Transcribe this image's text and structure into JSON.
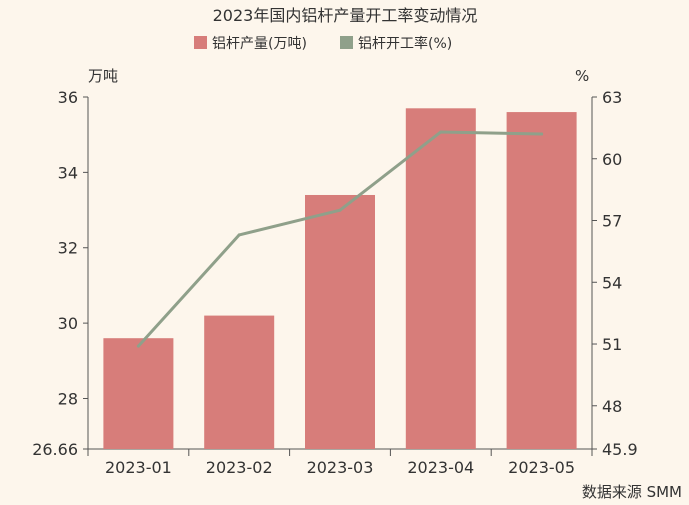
{
  "chart_data": {
    "type": "bar",
    "title": "2023年国内铝杆产量开工率变动情况",
    "categories": [
      "2023-01",
      "2023-02",
      "2023-03",
      "2023-04",
      "2023-05"
    ],
    "series": [
      {
        "name": "铝杆产量(万吨)",
        "type": "bar",
        "axis": "left",
        "color": "#d77d7a",
        "values": [
          29.6,
          30.2,
          33.4,
          35.7,
          35.6
        ]
      },
      {
        "name": "铝杆开工率(%)",
        "type": "line",
        "axis": "right",
        "color": "#8fa08a",
        "values": [
          50.9,
          56.3,
          57.5,
          61.3,
          61.2
        ]
      }
    ],
    "y_left": {
      "label": "万吨",
      "min": 26.66,
      "max": 36,
      "ticks": [
        26.66,
        28,
        30,
        32,
        34,
        36
      ]
    },
    "y_right": {
      "label": "%",
      "min": 45.9,
      "max": 63,
      "ticks": [
        45.9,
        48,
        51,
        54,
        57,
        60,
        63
      ]
    },
    "legend": "top-center",
    "grid": false,
    "source": "数据来源 SMM"
  }
}
